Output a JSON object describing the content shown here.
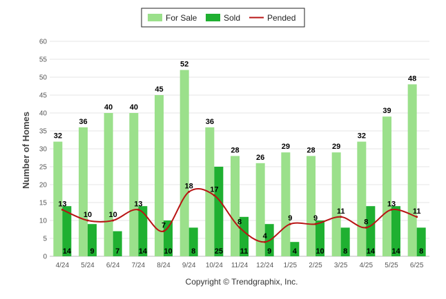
{
  "chart_data": {
    "type": "bar",
    "categories": [
      "4/24",
      "5/24",
      "6/24",
      "7/24",
      "8/24",
      "9/24",
      "10/24",
      "11/24",
      "12/24",
      "1/25",
      "2/25",
      "3/25",
      "4/25",
      "5/25",
      "6/25"
    ],
    "series": [
      {
        "name": "For Sale",
        "type": "bar",
        "color": "#9be08b",
        "values": [
          32,
          36,
          40,
          40,
          45,
          52,
          36,
          28,
          26,
          29,
          28,
          29,
          32,
          39,
          48
        ]
      },
      {
        "name": "Sold",
        "type": "bar",
        "color": "#1fb031",
        "values": [
          14,
          9,
          7,
          14,
          10,
          8,
          25,
          11,
          9,
          4,
          10,
          8,
          14,
          14,
          8
        ]
      },
      {
        "name": "Pended",
        "type": "line",
        "color": "#b81414",
        "values": [
          13,
          10,
          10,
          13,
          7,
          18,
          17,
          8,
          4,
          9,
          9,
          11,
          8,
          13,
          11
        ]
      }
    ],
    "ylabel": "Number of Homes",
    "ylim": [
      0,
      60
    ],
    "yticks": [
      0,
      5,
      10,
      15,
      20,
      25,
      30,
      35,
      40,
      45,
      50,
      55,
      60
    ],
    "grid": true,
    "legend_position": "top-center"
  },
  "copyright": "Copyright © Trendgraphix, Inc."
}
